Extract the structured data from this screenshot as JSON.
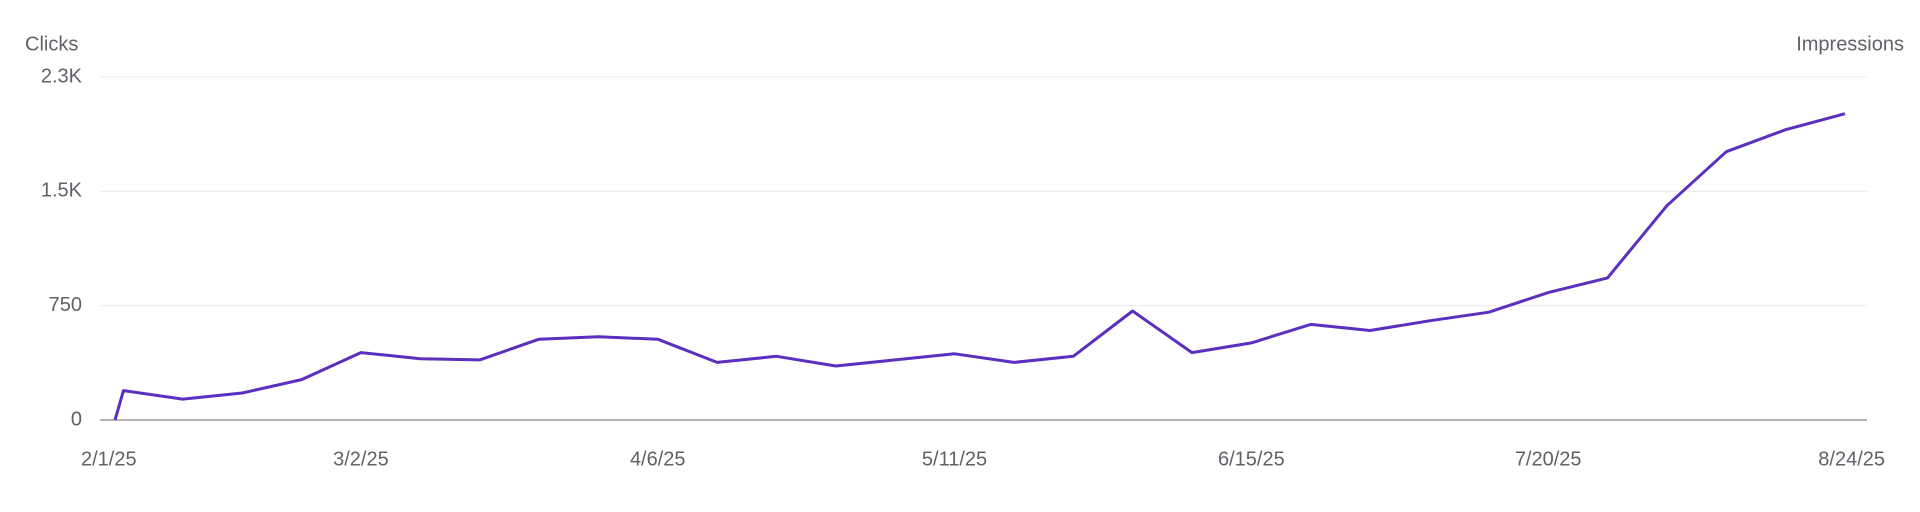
{
  "chart_data": {
    "type": "line",
    "y_label": "Clicks",
    "y2_label": "Impressions",
    "x": [
      "2/1/25",
      "2/2/25",
      "2/9/25",
      "2/16/25",
      "2/23/25",
      "3/2/25",
      "3/9/25",
      "3/16/25",
      "3/23/25",
      "3/30/25",
      "4/6/25",
      "4/13/25",
      "4/20/25",
      "4/27/25",
      "5/4/25",
      "5/11/25",
      "5/18/25",
      "5/25/25",
      "6/1/25",
      "6/8/25",
      "6/15/25",
      "6/22/25",
      "6/29/25",
      "7/6/25",
      "7/13/25",
      "7/20/25",
      "7/27/25",
      "8/3/25",
      "8/10/25",
      "8/17/25",
      "8/24/25"
    ],
    "series": [
      {
        "name": "Clicks",
        "color": "#5b2fbf",
        "values": [
          0,
          193,
          137,
          177,
          265,
          442,
          402,
          394,
          530,
          546,
          530,
          378,
          418,
          354,
          394,
          434,
          378,
          418,
          715,
          442,
          506,
          627,
          587,
          651,
          707,
          836,
          932,
          1406,
          1760,
          1904,
          2009
        ]
      }
    ],
    "xlim": [
      "2/1/25",
      "8/24/25"
    ],
    "xticks": [
      "2/1/25",
      "3/2/25",
      "4/6/25",
      "5/11/25",
      "6/15/25",
      "7/20/25",
      "8/24/25"
    ],
    "ylim": [
      0,
      2250
    ],
    "yticks": [
      0,
      750,
      {
        "value": 1500,
        "label": "1.5K"
      },
      {
        "value": 2250,
        "label": "2.3K"
      }
    ],
    "grid": true
  }
}
